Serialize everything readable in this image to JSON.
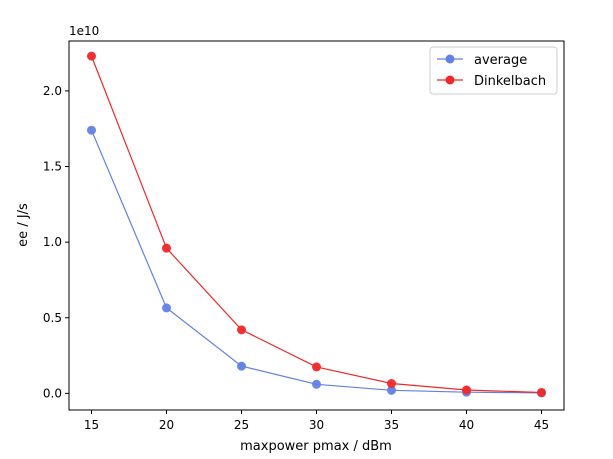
{
  "chart_data": {
    "type": "line",
    "title": "",
    "xlabel": "maxpower pmax / dBm",
    "ylabel": "ee / J/s",
    "y_offset_text": "1e10",
    "x": [
      15,
      20,
      25,
      30,
      35,
      40,
      45
    ],
    "x_ticks": [
      "15",
      "20",
      "25",
      "30",
      "35",
      "40",
      "45"
    ],
    "y_ticks": [
      {
        "value": 0.0,
        "label": "0.0"
      },
      {
        "value": 0.5,
        "label": "0.5"
      },
      {
        "value": 1.0,
        "label": "1.0"
      },
      {
        "value": 1.5,
        "label": "1.5"
      },
      {
        "value": 2.0,
        "label": "2.0"
      }
    ],
    "xlim": [
      13.5,
      46.5
    ],
    "ylim": [
      -0.11,
      2.33
    ],
    "y_scale_factor": 10000000000.0,
    "grid": false,
    "legend_position": "top-right",
    "series": [
      {
        "name": "average",
        "color": "#6181e6",
        "values": [
          1.74,
          0.565,
          0.18,
          0.06,
          0.02,
          0.008,
          0.003
        ]
      },
      {
        "name": "Dinkelbach",
        "color": "#f02828",
        "values": [
          2.23,
          0.96,
          0.42,
          0.175,
          0.065,
          0.022,
          0.006
        ]
      }
    ]
  }
}
